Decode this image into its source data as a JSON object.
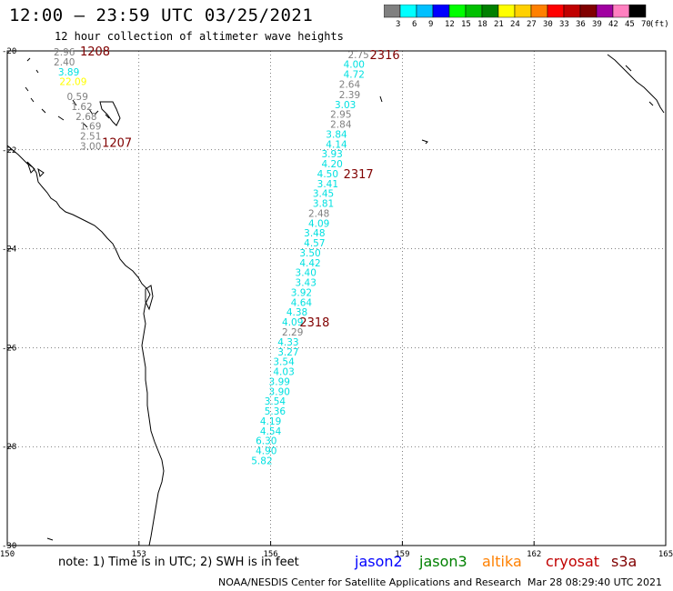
{
  "title": "12:00 – 23:59 UTC 03/25/2021",
  "subtitle": "12 hour collection of altimeter wave heights",
  "colorbar": {
    "unit": "(ft)",
    "levels": [
      "3",
      "6",
      "9",
      "12",
      "15",
      "18",
      "21",
      "24",
      "27",
      "30",
      "33",
      "36",
      "39",
      "42",
      "45",
      "70"
    ],
    "colors": [
      "#808080",
      "#00ffff",
      "#00c0ff",
      "#0000ff",
      "#00ff00",
      "#00c000",
      "#008000",
      "#ffff00",
      "#ffd000",
      "#ff8000",
      "#ff0000",
      "#c00000",
      "#800000",
      "#a000a0",
      "#ff80c0",
      "#000000"
    ]
  },
  "axes": {
    "lon_ticks": [
      "150",
      "153",
      "156",
      "159",
      "162",
      "165"
    ],
    "lat_ticks": [
      "-20",
      "-22",
      "-24",
      "-26",
      "-28",
      "-30"
    ],
    "lon_range": [
      150,
      165
    ],
    "lat_range": [
      -30,
      -20
    ]
  },
  "track_colors": {
    "gray": "#808080",
    "cyan": "#00e0e0",
    "yellow": "#ffff00",
    "time": "#800000"
  },
  "track_left": [
    {
      "v": "2.96",
      "lon": 151.3,
      "lat": -20.02,
      "c": "gray"
    },
    {
      "v": "2.40",
      "lon": 151.3,
      "lat": -20.22,
      "c": "gray"
    },
    {
      "v": "3.89",
      "lon": 151.4,
      "lat": -20.42,
      "c": "cyan"
    },
    {
      "v": "22.09",
      "lon": 151.5,
      "lat": -20.62,
      "c": "yellow"
    },
    {
      "v": "0.59",
      "lon": 151.6,
      "lat": -20.92,
      "c": "gray"
    },
    {
      "v": "1.62",
      "lon": 151.7,
      "lat": -21.12,
      "c": "gray"
    },
    {
      "v": "2.68",
      "lon": 151.8,
      "lat": -21.32,
      "c": "gray"
    },
    {
      "v": "1.69",
      "lon": 151.9,
      "lat": -21.52,
      "c": "gray"
    },
    {
      "v": "2.51",
      "lon": 151.9,
      "lat": -21.72,
      "c": "gray"
    },
    {
      "v": "3.00",
      "lon": 151.9,
      "lat": -21.92,
      "c": "gray"
    }
  ],
  "track_right": [
    {
      "v": "2.75",
      "lon": 158.0,
      "lat": -20.07,
      "c": "gray"
    },
    {
      "v": "4.00",
      "lon": 157.9,
      "lat": -20.27,
      "c": "cyan"
    },
    {
      "v": "4.72",
      "lon": 157.9,
      "lat": -20.47,
      "c": "cyan"
    },
    {
      "v": "2.64",
      "lon": 157.8,
      "lat": -20.67,
      "c": "gray"
    },
    {
      "v": "2.39",
      "lon": 157.8,
      "lat": -20.88,
      "c": "gray"
    },
    {
      "v": "3.03",
      "lon": 157.7,
      "lat": -21.08,
      "c": "cyan"
    },
    {
      "v": "2.95",
      "lon": 157.6,
      "lat": -21.28,
      "c": "gray"
    },
    {
      "v": "2.84",
      "lon": 157.6,
      "lat": -21.48,
      "c": "gray"
    },
    {
      "v": "3.84",
      "lon": 157.5,
      "lat": -21.68,
      "c": "cyan"
    },
    {
      "v": "4.14",
      "lon": 157.5,
      "lat": -21.88,
      "c": "cyan"
    },
    {
      "v": "3.93",
      "lon": 157.4,
      "lat": -22.08,
      "c": "cyan"
    },
    {
      "v": "4.20",
      "lon": 157.4,
      "lat": -22.28,
      "c": "cyan"
    },
    {
      "v": "4.50",
      "lon": 157.3,
      "lat": -22.48,
      "c": "cyan"
    },
    {
      "v": "3.41",
      "lon": 157.3,
      "lat": -22.68,
      "c": "cyan"
    },
    {
      "v": "3.45",
      "lon": 157.2,
      "lat": -22.88,
      "c": "cyan"
    },
    {
      "v": "3.81",
      "lon": 157.2,
      "lat": -23.08,
      "c": "cyan"
    },
    {
      "v": "2.48",
      "lon": 157.1,
      "lat": -23.28,
      "c": "gray"
    },
    {
      "v": "4.09",
      "lon": 157.1,
      "lat": -23.48,
      "c": "cyan"
    },
    {
      "v": "3.48",
      "lon": 157.0,
      "lat": -23.68,
      "c": "cyan"
    },
    {
      "v": "4.57",
      "lon": 157.0,
      "lat": -23.88,
      "c": "cyan"
    },
    {
      "v": "3.50",
      "lon": 156.9,
      "lat": -24.08,
      "c": "cyan"
    },
    {
      "v": "4.42",
      "lon": 156.9,
      "lat": -24.28,
      "c": "cyan"
    },
    {
      "v": "3.40",
      "lon": 156.8,
      "lat": -24.48,
      "c": "cyan"
    },
    {
      "v": "3.43",
      "lon": 156.8,
      "lat": -24.68,
      "c": "cyan"
    },
    {
      "v": "3.92",
      "lon": 156.7,
      "lat": -24.88,
      "c": "cyan"
    },
    {
      "v": "4.64",
      "lon": 156.7,
      "lat": -25.08,
      "c": "cyan"
    },
    {
      "v": "4.38",
      "lon": 156.6,
      "lat": -25.28,
      "c": "cyan"
    },
    {
      "v": "4.09",
      "lon": 156.5,
      "lat": -25.48,
      "c": "cyan"
    },
    {
      "v": "2.29",
      "lon": 156.5,
      "lat": -25.68,
      "c": "gray"
    },
    {
      "v": "4.33",
      "lon": 156.4,
      "lat": -25.88,
      "c": "cyan"
    },
    {
      "v": "3.27",
      "lon": 156.4,
      "lat": -26.08,
      "c": "cyan"
    },
    {
      "v": "3.54",
      "lon": 156.3,
      "lat": -26.28,
      "c": "cyan"
    },
    {
      "v": "4.03",
      "lon": 156.3,
      "lat": -26.48,
      "c": "cyan"
    },
    {
      "v": "3.99",
      "lon": 156.2,
      "lat": -26.68,
      "c": "cyan"
    },
    {
      "v": "3.90",
      "lon": 156.2,
      "lat": -26.88,
      "c": "cyan"
    },
    {
      "v": "3.54",
      "lon": 156.1,
      "lat": -27.08,
      "c": "cyan"
    },
    {
      "v": "5.36",
      "lon": 156.1,
      "lat": -27.28,
      "c": "cyan"
    },
    {
      "v": "4.19",
      "lon": 156.0,
      "lat": -27.48,
      "c": "cyan"
    },
    {
      "v": "4.54",
      "lon": 156.0,
      "lat": -27.68,
      "c": "cyan"
    },
    {
      "v": "6.30",
      "lon": 155.9,
      "lat": -27.88,
      "c": "cyan"
    },
    {
      "v": "4.90",
      "lon": 155.9,
      "lat": -28.08,
      "c": "cyan"
    },
    {
      "v": "5.82",
      "lon": 155.8,
      "lat": -28.28,
      "c": "cyan"
    }
  ],
  "time_labels": [
    {
      "t": "1208",
      "lon": 152.0,
      "lat": -20.0
    },
    {
      "t": "1207",
      "lon": 152.5,
      "lat": -21.85
    },
    {
      "t": "2316",
      "lon": 158.6,
      "lat": -20.07
    },
    {
      "t": "2317",
      "lon": 158.0,
      "lat": -22.48
    },
    {
      "t": "2318",
      "lon": 157.0,
      "lat": -25.48
    }
  ],
  "note": "note: 1) Time is in UTC; 2) SWH is in feet",
  "legend": [
    {
      "name": "jason2",
      "color": "#0000ff"
    },
    {
      "name": "jason3",
      "color": "#008000"
    },
    {
      "name": "altika",
      "color": "#ff8000"
    },
    {
      "name": "cryosat",
      "color": "#c00000"
    },
    {
      "name": "s3a",
      "color": "#800000"
    }
  ],
  "footer_left": "NOAA/NESDIS Center for Satellite Applications and Research",
  "footer_right": "Mar 28 08:29:40 UTC 2021"
}
